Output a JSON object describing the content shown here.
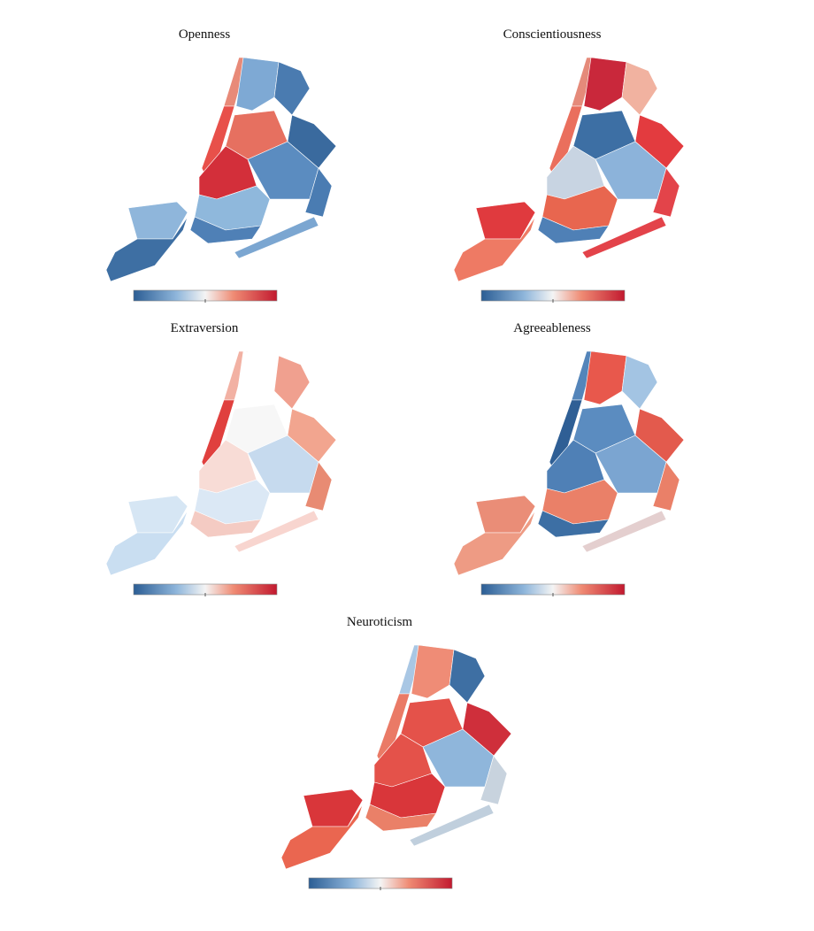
{
  "maps": [
    {
      "title": "Openness",
      "colors": [
        "#8fb6db",
        "#3e6fa3",
        "#e88a78",
        "#e8504a",
        "#7ea9d4",
        "#4a7bb0",
        "#e67060",
        "#3a6a9e",
        "#5b8cc0",
        "#4a7cb2",
        "#d32f3a",
        "#8fb8dc",
        "#4f80b6",
        "#7ba6d1"
      ]
    },
    {
      "title": "Conscientiousness",
      "colors": [
        "#e03a3e",
        "#ee7a64",
        "#e58a7a",
        "#ea6f5d",
        "#c9283b",
        "#f1b2a0",
        "#3d6fa4",
        "#e33b3f",
        "#8cb3da",
        "#e3444a",
        "#c8d4e2",
        "#e8664f",
        "#4f80b6",
        "#e3434a"
      ]
    },
    {
      "title": "Extraversion",
      "colors": [
        "#d6e6f4",
        "#c9def1",
        "#f2b1a3",
        "#e0403e",
        "#ffffff",
        "#f0a08f",
        "#f7f7f7",
        "#f2a58f",
        "#c6daee",
        "#e88b73",
        "#f8dcd6",
        "#dbe8f5",
        "#f4cbc3",
        "#f8d5cf"
      ]
    },
    {
      "title": "Agreeableness",
      "colors": [
        "#ea8d77",
        "#ee9b84",
        "#5485ba",
        "#2f5f95",
        "#e8584c",
        "#a3c4e3",
        "#5b8cc0",
        "#e35a4d",
        "#7ba5d1",
        "#ea8068",
        "#4f80b6",
        "#ea8068",
        "#3d6fa4",
        "#e4cfcf"
      ]
    },
    {
      "title": "Neuroticism",
      "colors": [
        "#d9363a",
        "#ea6650",
        "#a9c7e4",
        "#ea7a66",
        "#ef8c76",
        "#3e6fa3",
        "#e4524a",
        "#cf2f3b",
        "#8fb6db",
        "#c8d3de",
        "#e4524a",
        "#d9363a",
        "#ea8068",
        "#c0cfdd"
      ]
    }
  ]
}
